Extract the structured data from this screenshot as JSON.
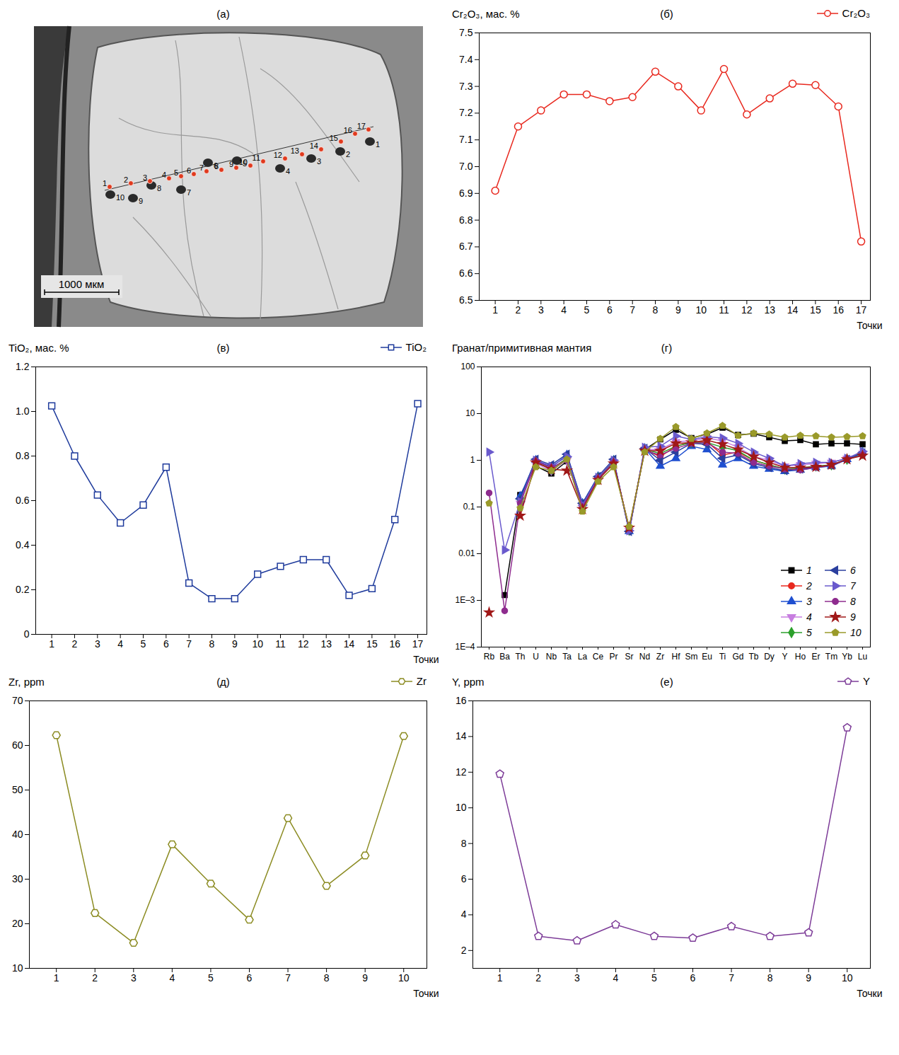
{
  "chart_data": [
    {
      "type": "image",
      "title": "(а)",
      "scale_bar": "1000 мкм",
      "analysis_points": [
        "1",
        "2",
        "3",
        "4",
        "5",
        "6",
        "7",
        "8",
        "9",
        "10",
        "11",
        "12",
        "13",
        "14",
        "15",
        "16",
        "17"
      ],
      "ablation_pits": [
        "1",
        "2",
        "3",
        "4",
        "5",
        "6",
        "7",
        "8",
        "9",
        "10"
      ]
    },
    {
      "type": "line",
      "title": "(б)",
      "y_label": "Cr₂O₃, мас. %",
      "x_label": "Точки",
      "x": [
        1,
        2,
        3,
        4,
        5,
        6,
        7,
        8,
        9,
        10,
        11,
        12,
        13,
        14,
        15,
        16,
        17
      ],
      "xlim": [
        0.3,
        17.4
      ],
      "xticks": [
        1,
        2,
        3,
        4,
        5,
        6,
        7,
        8,
        9,
        10,
        11,
        12,
        13,
        14,
        15,
        16,
        17
      ],
      "ylim": [
        6.5,
        7.5
      ],
      "yticks": [
        6.5,
        6.6,
        6.7,
        6.8,
        6.9,
        {
          "value": 7,
          "label": "7.0"
        },
        7.1,
        7.2,
        7.3,
        7.4,
        7.5
      ],
      "grid": false,
      "legend": "top right",
      "series": [
        {
          "name": "Cr₂O₃",
          "color": "#e8281e",
          "marker": "circle-open",
          "values": [
            6.91,
            7.15,
            7.21,
            7.27,
            7.27,
            7.245,
            7.26,
            7.355,
            7.3,
            7.21,
            7.365,
            7.195,
            7.255,
            7.31,
            7.305,
            7.225,
            6.72
          ]
        }
      ]
    },
    {
      "type": "line",
      "title": "(в)",
      "y_label": "TiO₂, мас. %",
      "x_label": "Точки",
      "x": [
        1,
        2,
        3,
        4,
        5,
        6,
        7,
        8,
        9,
        10,
        11,
        12,
        13,
        14,
        15,
        16,
        17
      ],
      "xlim": [
        0.3,
        17.4
      ],
      "xticks": [
        1,
        2,
        3,
        4,
        5,
        6,
        7,
        8,
        9,
        10,
        11,
        12,
        13,
        14,
        15,
        16,
        17
      ],
      "ylim": [
        0,
        1.2
      ],
      "yticks": [
        0,
        0.2,
        0.4,
        0.6,
        0.8,
        {
          "value": 1,
          "label": "1.0"
        },
        1.2
      ],
      "grid": false,
      "legend": "top right",
      "series": [
        {
          "name": "TiO₂",
          "color": "#1f3b9c",
          "marker": "square-open",
          "values": [
            1.025,
            0.8,
            0.625,
            0.5,
            0.58,
            0.75,
            0.23,
            0.16,
            0.16,
            0.27,
            0.305,
            0.335,
            0.335,
            0.175,
            0.205,
            0.515,
            1.035
          ]
        }
      ]
    },
    {
      "type": "line",
      "title": "(г)",
      "y_label": "Гранат/примитивная мантия",
      "categories": [
        "Rb",
        "Ba",
        "Th",
        "U",
        "Nb",
        "Ta",
        "La",
        "Ce",
        "Pr",
        "Sr",
        "Nd",
        "Zr",
        "Hf",
        "Sm",
        "Eu",
        "Ti",
        "Gd",
        "Tb",
        "Dy",
        "Y",
        "Ho",
        "Er",
        "Tm",
        "Yb",
        "Lu"
      ],
      "log": "y",
      "ylim": [
        0.0001,
        100
      ],
      "yticks": [
        {
          "value": 0.0001,
          "label": "1E–4"
        },
        {
          "value": 0.001,
          "label": "1E–3"
        },
        0.01,
        0.1,
        1,
        10,
        100
      ],
      "grid": false,
      "legend": "lower right",
      "series": [
        {
          "name": "1",
          "color": "#000000",
          "marker": "square",
          "values": [
            null,
            0.0013,
            0.18,
            0.75,
            0.52,
            0.95,
            0.1,
            0.4,
            0.9,
            0.033,
            1.7,
            2.8,
            4.5,
            3.0,
            3.6,
            5.0,
            3.5,
            3.7,
            3.1,
            2.6,
            2.7,
            2.2,
            2.3,
            2.3,
            2.2
          ]
        },
        {
          "name": "2",
          "color": "#e8281e",
          "marker": "circle",
          "values": [
            null,
            null,
            0.15,
            0.9,
            0.65,
            1.1,
            0.1,
            0.4,
            0.95,
            0.032,
            1.7,
            1.2,
            2.0,
            2.5,
            2.5,
            1.3,
            1.5,
            1.0,
            0.8,
            0.65,
            0.65,
            0.72,
            0.75,
            1.05,
            1.4
          ]
        },
        {
          "name": "3",
          "color": "#1f4fd0",
          "marker": "triangle",
          "values": [
            null,
            null,
            0.17,
            1.0,
            0.7,
            1.3,
            0.12,
            0.45,
            1.0,
            0.03,
            1.8,
            0.75,
            1.1,
            2.0,
            1.7,
            0.8,
            1.1,
            0.75,
            0.65,
            0.58,
            0.62,
            0.7,
            0.75,
            1.05,
            1.5
          ]
        },
        {
          "name": "4",
          "color": "#c77ee0",
          "marker": "triangle-down",
          "values": [
            null,
            null,
            0.12,
            0.85,
            0.6,
            1.0,
            0.1,
            0.4,
            0.9,
            0.031,
            1.7,
            1.7,
            2.5,
            2.6,
            3.0,
            2.6,
            1.9,
            1.2,
            1.0,
            0.75,
            0.8,
            0.85,
            0.9,
            1.1,
            1.4
          ]
        },
        {
          "name": "5",
          "color": "#2ca02c",
          "marker": "diamond",
          "values": [
            null,
            null,
            0.14,
            0.9,
            0.65,
            1.1,
            0.11,
            0.42,
            0.95,
            0.032,
            1.7,
            1.4,
            2.0,
            2.4,
            2.4,
            1.9,
            1.6,
            1.0,
            0.8,
            0.65,
            0.68,
            0.75,
            0.8,
            1.05,
            1.4
          ]
        },
        {
          "name": "6",
          "color": "#2b3f9e",
          "marker": "triangle-left",
          "values": [
            null,
            null,
            0.15,
            1.05,
            0.8,
            1.35,
            0.12,
            0.45,
            1.05,
            0.03,
            1.8,
            1.0,
            1.5,
            2.3,
            2.2,
            1.1,
            1.3,
            0.85,
            0.7,
            0.6,
            0.65,
            0.72,
            0.78,
            1.05,
            1.45
          ]
        },
        {
          "name": "7",
          "color": "#6a5acd",
          "marker": "triangle-right",
          "values": [
            1.5,
            0.012,
            0.13,
            1.0,
            0.75,
            1.2,
            0.11,
            0.43,
            1.0,
            0.031,
            1.9,
            2.0,
            3.3,
            2.8,
            3.2,
            3.0,
            2.3,
            1.5,
            1.1,
            0.75,
            0.85,
            0.9,
            0.9,
            1.1,
            1.55
          ]
        },
        {
          "name": "8",
          "color": "#8e2c8e",
          "marker": "circle",
          "values": [
            0.2,
            0.0006,
            0.12,
            0.95,
            0.7,
            1.0,
            0.1,
            0.4,
            0.9,
            0.035,
            1.6,
            1.3,
            1.8,
            2.3,
            2.4,
            1.5,
            1.4,
            0.9,
            0.75,
            0.65,
            0.62,
            0.7,
            0.78,
            1.05,
            1.3
          ]
        },
        {
          "name": "9",
          "color": "#a01818",
          "marker": "star",
          "values": [
            0.00055,
            null,
            0.065,
            0.9,
            0.65,
            0.6,
            0.09,
            0.38,
            0.85,
            0.036,
            1.6,
            1.6,
            2.3,
            2.4,
            2.7,
            2.2,
            1.7,
            1.2,
            0.9,
            0.7,
            0.7,
            0.72,
            0.8,
            1.05,
            1.25
          ]
        },
        {
          "name": "10",
          "color": "#9a9a2a",
          "marker": "pentagon",
          "values": [
            0.12,
            null,
            0.095,
            0.72,
            0.6,
            1.05,
            0.08,
            0.35,
            0.72,
            0.038,
            1.5,
            2.9,
            5.2,
            2.9,
            3.8,
            5.5,
            3.4,
            3.8,
            3.6,
            3.1,
            3.4,
            3.3,
            3.1,
            3.2,
            3.3
          ]
        }
      ]
    },
    {
      "type": "line",
      "title": "(д)",
      "y_label": "Zr, ppm",
      "x_label": "Точки",
      "x": [
        1,
        2,
        3,
        4,
        5,
        6,
        7,
        8,
        9,
        10
      ],
      "xlim": [
        0.3,
        10.6
      ],
      "xticks": [
        1,
        2,
        3,
        4,
        5,
        6,
        7,
        8,
        9,
        10
      ],
      "ylim": [
        10,
        70
      ],
      "yticks": [
        10,
        20,
        30,
        40,
        50,
        60,
        70
      ],
      "grid": false,
      "legend": "top right",
      "series": [
        {
          "name": "Zr",
          "color": "#8c8c23",
          "marker": "hexagon-open",
          "values": [
            62.3,
            22.4,
            15.7,
            37.8,
            29.0,
            20.9,
            43.7,
            28.5,
            35.3,
            62.1
          ]
        }
      ]
    },
    {
      "type": "line",
      "title": "(е)",
      "y_label": "Y, ppm",
      "x_label": "Точки",
      "x": [
        1,
        2,
        3,
        4,
        5,
        6,
        7,
        8,
        9,
        10
      ],
      "xlim": [
        0.3,
        10.6
      ],
      "xticks": [
        1,
        2,
        3,
        4,
        5,
        6,
        7,
        8,
        9,
        10
      ],
      "ylim": [
        1,
        16
      ],
      "yticks": [
        2,
        4,
        6,
        8,
        10,
        12,
        14,
        16
      ],
      "grid": false,
      "legend": "top right",
      "series": [
        {
          "name": "Y",
          "color": "#7d3c98",
          "marker": "pentagon-open",
          "values": [
            11.9,
            2.8,
            2.55,
            3.45,
            2.8,
            2.7,
            3.35,
            2.8,
            3.0,
            14.5
          ]
        }
      ]
    }
  ]
}
